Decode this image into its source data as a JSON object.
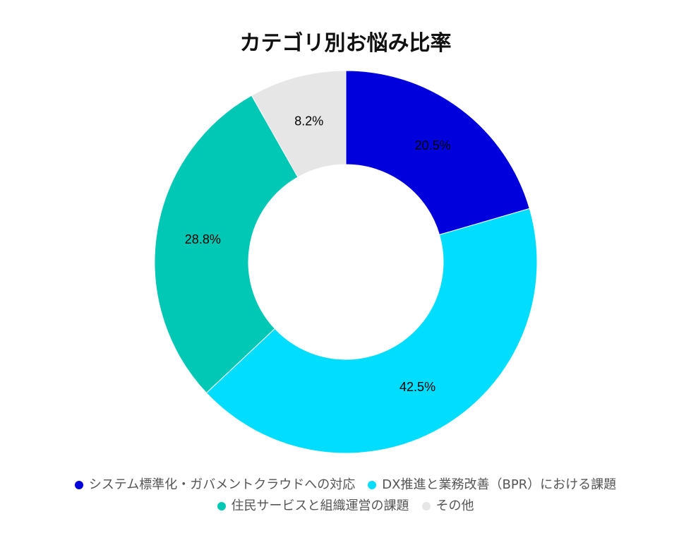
{
  "chart_data": {
    "type": "pie",
    "variant": "donut",
    "title": "カテゴリ別お悩み比率",
    "categories": [
      "システム標準化・ガバメントクラウドへの対応",
      "DX推進と業務改善（BPR）における課題",
      "住民サービスと組織運営の課題",
      "その他"
    ],
    "values": [
      20.5,
      42.5,
      28.8,
      8.2
    ],
    "value_labels": [
      "20.5%",
      "42.5%",
      "28.8%",
      "8.2%"
    ],
    "colors": [
      "#0000dd",
      "#00ddff",
      "#00c8b4",
      "#e6e6e6"
    ],
    "legend_position": "bottom"
  }
}
